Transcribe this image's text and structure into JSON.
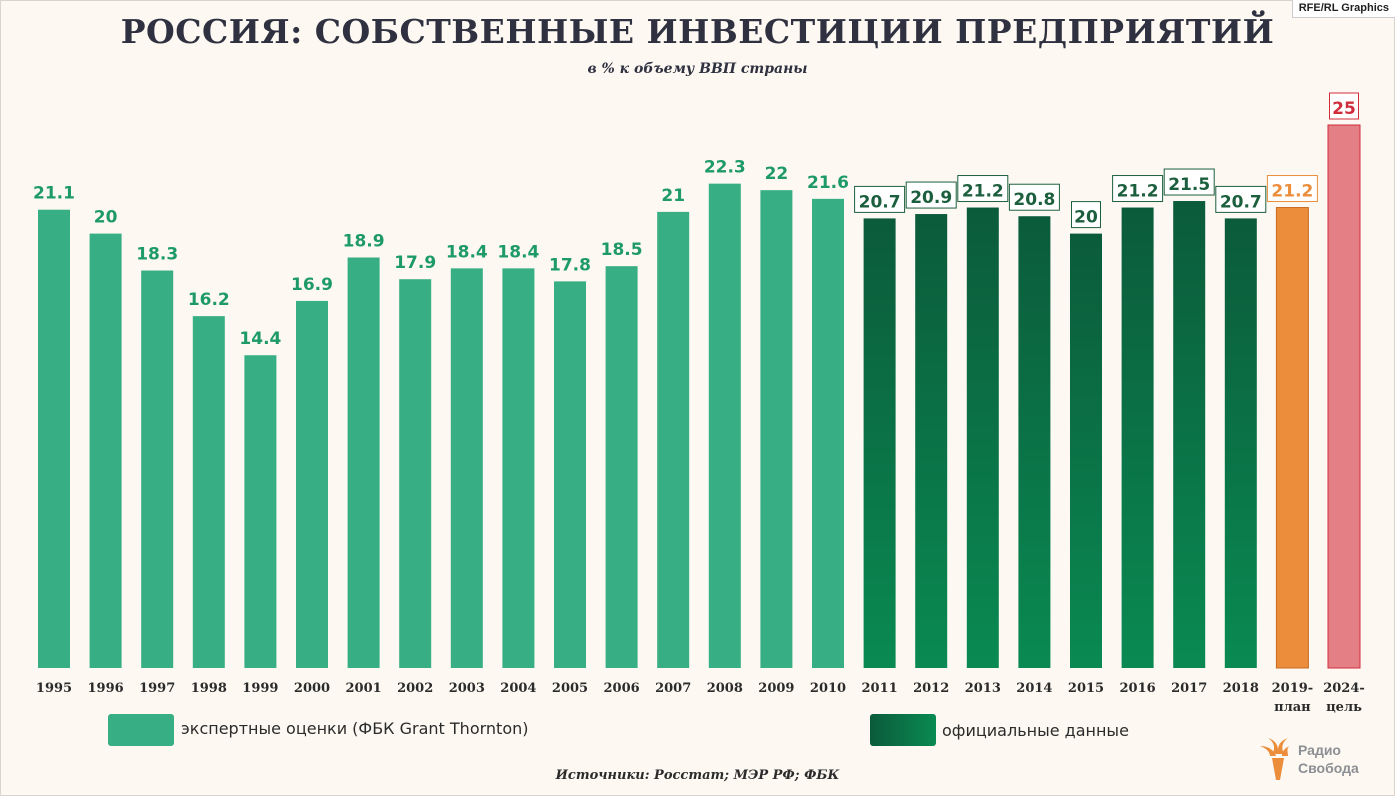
{
  "credit": "RFE/RL Graphics",
  "title": "РОССИЯ: СОБСТВЕННЫЕ ИНВЕСТИЦИИ ПРЕДПРИЯТИЙ",
  "subtitle": "в % к объему ВВП страны",
  "colors": {
    "expert": "#37ae83",
    "official_dark": "#0b5b3a",
    "official_light": "#0a8a52",
    "plan": "#ec8d3b",
    "target": "#e47f86",
    "target_label": "#d12c3a",
    "plan_label": "#ec8d3b",
    "label_green": "#1e9a67",
    "official_label": "#1c5f3e"
  },
  "legend": {
    "expert": "экспертные  оценки (ФБК Grant Thornton)",
    "official": "официальные данные"
  },
  "logo": {
    "line1": "Радио",
    "line2": "Свобода"
  },
  "source": "Источники: Росстат; МЭР РФ; ФБК",
  "chart_data": {
    "type": "bar",
    "title": "РОССИЯ: СОБСТВЕННЫЕ ИНВЕСТИЦИИ ПРЕДПРИЯТИЙ",
    "subtitle": "в % к объему ВВП страны",
    "ylim": [
      0,
      25
    ],
    "grid": false,
    "legend_position": "bottom",
    "categories": [
      [
        "1995"
      ],
      [
        "1996"
      ],
      [
        "1997"
      ],
      [
        "1998"
      ],
      [
        "1999"
      ],
      [
        "2000"
      ],
      [
        "2001"
      ],
      [
        "2002"
      ],
      [
        "2003"
      ],
      [
        "2004"
      ],
      [
        "2005"
      ],
      [
        "2006"
      ],
      [
        "2007"
      ],
      [
        "2008"
      ],
      [
        "2009"
      ],
      [
        "2010"
      ],
      [
        "2011"
      ],
      [
        "2012"
      ],
      [
        "2013"
      ],
      [
        "2014"
      ],
      [
        "2015"
      ],
      [
        "2016"
      ],
      [
        "2017"
      ],
      [
        "2018"
      ],
      [
        "2019-",
        "план"
      ],
      [
        "2024-",
        "цель"
      ]
    ],
    "values": [
      21.1,
      20,
      18.3,
      16.2,
      14.4,
      16.9,
      18.9,
      17.9,
      18.4,
      18.4,
      17.8,
      18.5,
      21,
      22.3,
      22,
      21.6,
      20.7,
      20.9,
      21.2,
      20.8,
      20,
      21.2,
      21.5,
      20.7,
      21.2,
      25
    ],
    "labels": [
      "21.1",
      "20",
      "18.3",
      "16.2",
      "14.4",
      "16.9",
      "18.9",
      "17.9",
      "18.4",
      "18.4",
      "17.8",
      "18.5",
      "21",
      "22.3",
      "22",
      "21.6",
      "20.7",
      "20.9",
      "21.2",
      "20.8",
      "20",
      "21.2",
      "21.5",
      "20.7",
      "21.2",
      "25"
    ],
    "groups": [
      "expert",
      "expert",
      "expert",
      "expert",
      "expert",
      "expert",
      "expert",
      "expert",
      "expert",
      "expert",
      "expert",
      "expert",
      "expert",
      "expert",
      "expert",
      "expert",
      "official",
      "official",
      "official",
      "official",
      "official",
      "official",
      "official",
      "official",
      "plan",
      "target"
    ]
  }
}
